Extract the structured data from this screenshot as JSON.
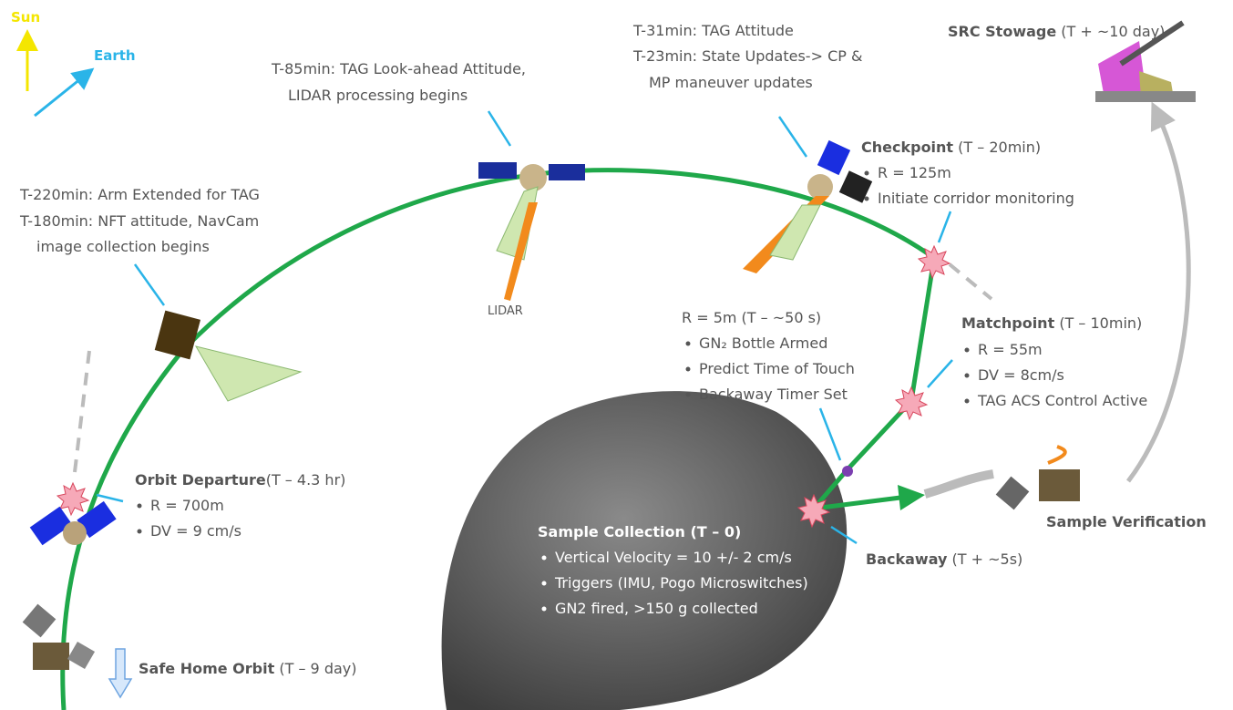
{
  "compass": {
    "sun": "Sun",
    "earth": "Earth"
  },
  "notes": {
    "look_ahead": [
      "T-85min: TAG Look-ahead Attitude,",
      "LIDAR processing begins"
    ],
    "tag_attitude": [
      "T-31min: TAG Attitude",
      "T-23min: State Updates-> CP &",
      "MP maneuver updates"
    ],
    "arm_extended": [
      "T-220min: Arm Extended for TAG",
      "T-180min: NFT attitude, NavCam",
      "image collection begins"
    ],
    "lidar": "LIDAR"
  },
  "events": {
    "src_stowage": {
      "title": "SRC Stowage",
      "time": "(T + ~10 day)"
    },
    "checkpoint": {
      "title": "Checkpoint",
      "time": "(T – 20min)",
      "bullets": [
        "R = 125m",
        "Initiate corridor monitoring"
      ]
    },
    "r5m": {
      "title": "R = 5m (T – ~50 s)",
      "bullets": [
        "GN₂ Bottle Armed",
        "Predict Time of Touch",
        "Backaway Timer Set"
      ]
    },
    "matchpoint": {
      "title": "Matchpoint",
      "time": "(T – 10min)",
      "bullets": [
        "R = 55m",
        "DV = 8cm/s",
        "TAG ACS Control Active"
      ]
    },
    "orbit_departure": {
      "title": "Orbit Departure",
      "time": "(T – 4.3 hr)",
      "bullets": [
        "R = 700m",
        "DV = 9 cm/s"
      ]
    },
    "sample_collection": {
      "title": "Sample Collection (T – 0)",
      "bullets": [
        "Vertical Velocity = 10 +/- 2 cm/s",
        "Triggers (IMU, Pogo Microswitches)",
        "GN2 fired, >150 g collected"
      ]
    },
    "sample_verification": {
      "title": "Sample Verification"
    },
    "backaway": {
      "title": "Backaway",
      "time": "(T + ~5s)"
    },
    "safe_home": {
      "title": "Safe Home Orbit",
      "time": "(T – 9 day)"
    }
  }
}
